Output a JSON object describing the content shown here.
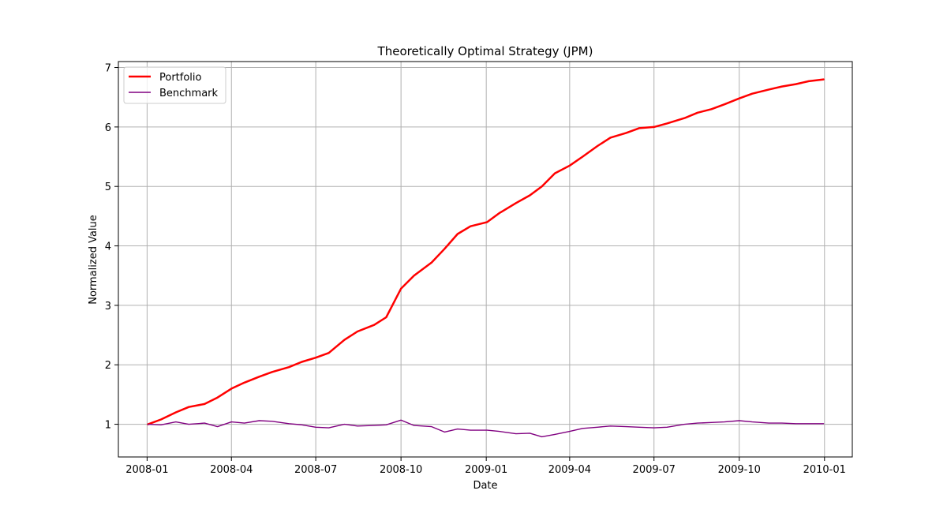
{
  "chart_data": {
    "type": "line",
    "title": "Theoretically Optimal Strategy (JPM)",
    "xlabel": "Date",
    "ylabel": "Normalized Value",
    "x_ticks": [
      "2008-01",
      "2008-04",
      "2008-07",
      "2008-10",
      "2009-01",
      "2009-04",
      "2009-07",
      "2009-10",
      "2010-01"
    ],
    "y_ticks": [
      1,
      2,
      3,
      4,
      5,
      6,
      7
    ],
    "ylim": [
      0.45,
      7.1
    ],
    "xlim": [
      "2007-12-01",
      "2010-01-31"
    ],
    "grid": true,
    "legend_position": "top-left",
    "series": [
      {
        "name": "Portfolio",
        "color": "#ff0000",
        "x": [
          "2008-01-02",
          "2008-01-16",
          "2008-02-01",
          "2008-02-15",
          "2008-03-03",
          "2008-03-17",
          "2008-04-01",
          "2008-04-15",
          "2008-05-01",
          "2008-05-15",
          "2008-06-02",
          "2008-06-16",
          "2008-07-01",
          "2008-07-15",
          "2008-08-01",
          "2008-08-15",
          "2008-09-02",
          "2008-09-15",
          "2008-10-01",
          "2008-10-15",
          "2008-11-03",
          "2008-11-17",
          "2008-12-01",
          "2008-12-15",
          "2009-01-02",
          "2009-01-15",
          "2009-02-02",
          "2009-02-17",
          "2009-03-02",
          "2009-03-16",
          "2009-04-01",
          "2009-04-15",
          "2009-05-01",
          "2009-05-15",
          "2009-06-01",
          "2009-06-15",
          "2009-07-01",
          "2009-07-15",
          "2009-08-03",
          "2009-08-17",
          "2009-09-01",
          "2009-09-15",
          "2009-10-01",
          "2009-10-15",
          "2009-11-02",
          "2009-11-16",
          "2009-12-01",
          "2009-12-15",
          "2009-12-31"
        ],
        "values": [
          1.0,
          1.08,
          1.2,
          1.29,
          1.34,
          1.45,
          1.6,
          1.7,
          1.8,
          1.88,
          1.96,
          2.05,
          2.12,
          2.2,
          2.42,
          2.56,
          2.67,
          2.8,
          3.28,
          3.5,
          3.72,
          3.95,
          4.2,
          4.33,
          4.4,
          4.55,
          4.72,
          4.85,
          5.0,
          5.22,
          5.35,
          5.5,
          5.68,
          5.82,
          5.9,
          5.98,
          6.0,
          6.06,
          6.15,
          6.24,
          6.3,
          6.38,
          6.48,
          6.56,
          6.63,
          6.68,
          6.72,
          6.77,
          6.8
        ]
      },
      {
        "name": "Benchmark",
        "color": "#800080",
        "x": [
          "2008-01-02",
          "2008-01-16",
          "2008-02-01",
          "2008-02-15",
          "2008-03-03",
          "2008-03-17",
          "2008-04-01",
          "2008-04-15",
          "2008-05-01",
          "2008-05-15",
          "2008-06-02",
          "2008-06-16",
          "2008-07-01",
          "2008-07-15",
          "2008-08-01",
          "2008-08-15",
          "2008-09-02",
          "2008-09-15",
          "2008-10-01",
          "2008-10-15",
          "2008-11-03",
          "2008-11-17",
          "2008-12-01",
          "2008-12-15",
          "2009-01-02",
          "2009-01-15",
          "2009-02-02",
          "2009-02-17",
          "2009-03-02",
          "2009-03-16",
          "2009-04-01",
          "2009-04-15",
          "2009-05-01",
          "2009-05-15",
          "2009-06-01",
          "2009-06-15",
          "2009-07-01",
          "2009-07-15",
          "2009-08-03",
          "2009-08-17",
          "2009-09-01",
          "2009-09-15",
          "2009-10-01",
          "2009-10-15",
          "2009-11-02",
          "2009-11-16",
          "2009-12-01",
          "2009-12-15",
          "2009-12-31"
        ],
        "values": [
          1.0,
          0.99,
          1.04,
          1.0,
          1.02,
          0.96,
          1.04,
          1.02,
          1.06,
          1.05,
          1.01,
          0.99,
          0.95,
          0.94,
          1.0,
          0.97,
          0.98,
          0.99,
          1.07,
          0.98,
          0.96,
          0.87,
          0.92,
          0.9,
          0.9,
          0.88,
          0.84,
          0.85,
          0.79,
          0.83,
          0.88,
          0.93,
          0.95,
          0.97,
          0.96,
          0.95,
          0.94,
          0.95,
          1.0,
          1.02,
          1.03,
          1.04,
          1.06,
          1.04,
          1.02,
          1.02,
          1.01,
          1.01,
          1.01
        ]
      }
    ]
  }
}
